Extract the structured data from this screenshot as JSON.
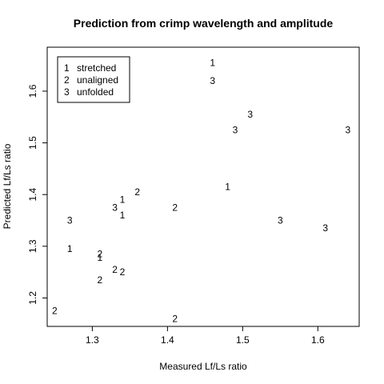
{
  "chart_data": {
    "type": "scatter",
    "title": "Prediction from crimp wavelength and amplitude",
    "xlabel": "Measured Lf/Ls ratio",
    "ylabel": "Predicted Lf/Ls ratio",
    "xlim": [
      1.24,
      1.655
    ],
    "ylim": [
      1.145,
      1.685
    ],
    "xticks": [
      1.3,
      1.4,
      1.5,
      1.6
    ],
    "yticks": [
      1.2,
      1.3,
      1.4,
      1.5,
      1.6
    ],
    "grid": false,
    "legend": {
      "position": "top-left",
      "entries": [
        {
          "symbol": "1",
          "label": "stretched"
        },
        {
          "symbol": "2",
          "label": "unaligned"
        },
        {
          "symbol": "3",
          "label": "unfolded"
        }
      ]
    },
    "series": [
      {
        "symbol": "1",
        "points": [
          {
            "x": 1.46,
            "y": 1.655
          },
          {
            "x": 1.27,
            "y": 1.295
          },
          {
            "x": 1.31,
            "y": 1.278
          },
          {
            "x": 1.34,
            "y": 1.39
          },
          {
            "x": 1.34,
            "y": 1.36
          },
          {
            "x": 1.48,
            "y": 1.415
          }
        ]
      },
      {
        "symbol": "2",
        "points": [
          {
            "x": 1.25,
            "y": 1.175
          },
          {
            "x": 1.31,
            "y": 1.235
          },
          {
            "x": 1.31,
            "y": 1.285
          },
          {
            "x": 1.33,
            "y": 1.255
          },
          {
            "x": 1.34,
            "y": 1.25
          },
          {
            "x": 1.36,
            "y": 1.405
          },
          {
            "x": 1.41,
            "y": 1.375
          },
          {
            "x": 1.41,
            "y": 1.16
          }
        ]
      },
      {
        "symbol": "3",
        "points": [
          {
            "x": 1.46,
            "y": 1.62
          },
          {
            "x": 1.49,
            "y": 1.525
          },
          {
            "x": 1.51,
            "y": 1.555
          },
          {
            "x": 1.64,
            "y": 1.525
          },
          {
            "x": 1.27,
            "y": 1.35
          },
          {
            "x": 1.33,
            "y": 1.375
          },
          {
            "x": 1.55,
            "y": 1.35
          },
          {
            "x": 1.61,
            "y": 1.335
          }
        ]
      }
    ]
  }
}
